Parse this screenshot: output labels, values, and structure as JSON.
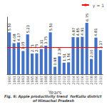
{
  "chart_data": {
    "type": "bar",
    "title": "Fig. 9: Apple productivity trend  forKullu district of Himachal Pradesh",
    "xlabel": "Years",
    "categories": [
      "1990",
      "1991",
      "1992",
      "1993",
      "1994",
      "1995",
      "1996",
      "1997",
      "1998",
      "1999",
      "2000",
      "2001",
      "2002",
      "2003",
      "2004",
      "2005",
      "2006",
      "2007",
      "2008",
      "2009",
      "2010"
    ],
    "values": [
      5.5,
      4.08,
      4.17,
      3.05,
      5.23,
      2.71,
      2.75,
      3.31,
      3.75,
      5.5,
      0.98,
      2.36,
      1.51,
      1.56,
      4.87,
      4.85,
      4.91,
      6.75,
      2.0,
      4.81,
      3.17
    ],
    "value_labels": [
      "5.50",
      "4.08",
      "4.17",
      "3.05",
      "5.23",
      "2.71",
      "2.75",
      "3.31",
      "3.75",
      "5.50",
      "0.98",
      "2.36",
      "1.51",
      "1.56",
      "4.87",
      "4.85",
      "4.91",
      "6.75",
      "2.00",
      "4.81",
      "3.17"
    ],
    "color": "#4472C4",
    "data_labels": true,
    "ylim": [
      0,
      7.5
    ],
    "tick_labels": "x",
    "grid": false,
    "legend": "upper right",
    "trend": {
      "name": "y = 1",
      "value": 3.5,
      "color": "#FF0000"
    }
  }
}
